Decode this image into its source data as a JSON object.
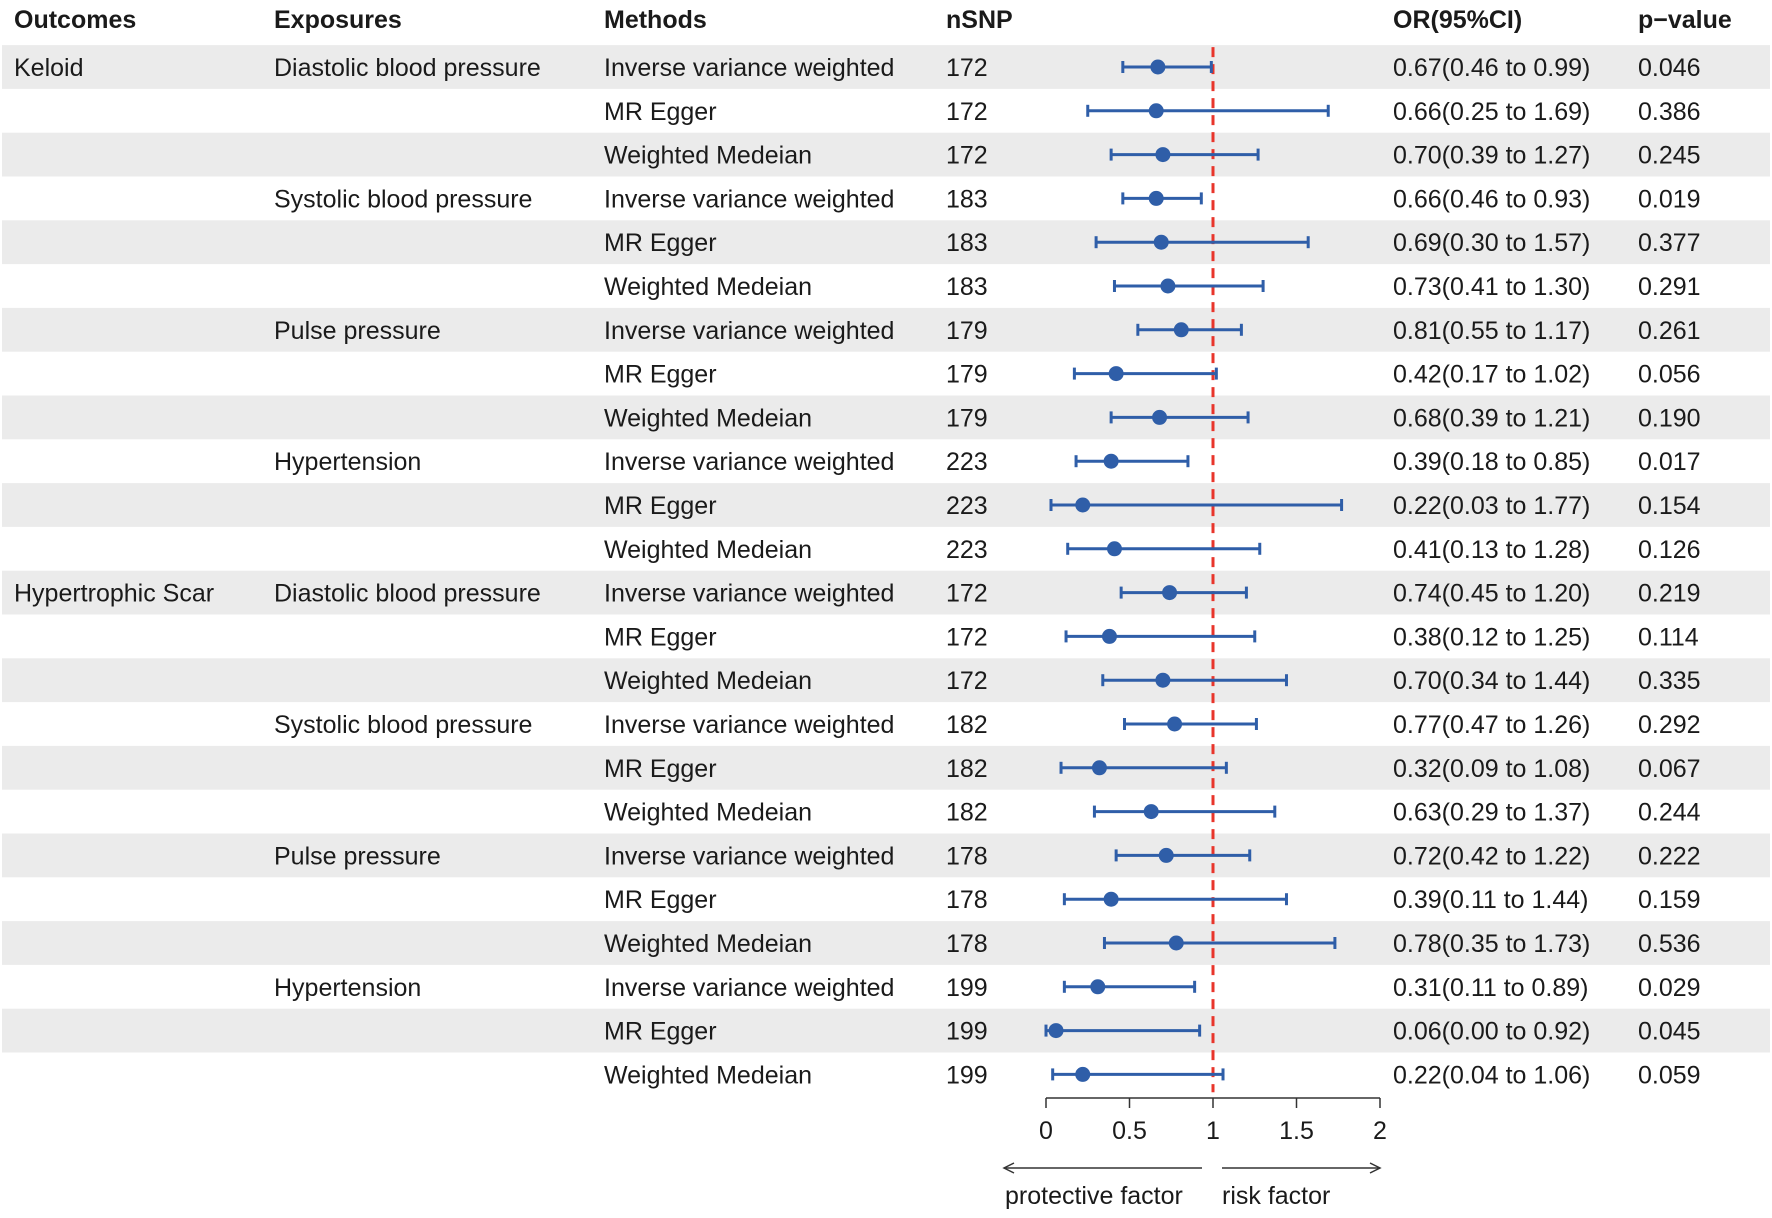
{
  "chart_data": {
    "type": "forest",
    "columns": {
      "outcomes": "Outcomes",
      "exposures": "Exposures",
      "methods": "Methods",
      "nsnp": "nSNP",
      "or": "OR(95%CI)",
      "p": "p−value"
    },
    "rows": [
      {
        "outcome": "Keloid",
        "exposure": "Diastolic blood pressure",
        "method": "Inverse variance weighted",
        "nsnp": "172",
        "or": 0.67,
        "lo": 0.46,
        "hi": 0.99,
        "or_text": "0.67(0.46 to 0.99)",
        "p": "0.046"
      },
      {
        "outcome": "",
        "exposure": "",
        "method": "MR Egger",
        "nsnp": "172",
        "or": 0.66,
        "lo": 0.25,
        "hi": 1.69,
        "or_text": "0.66(0.25 to 1.69)",
        "p": "0.386"
      },
      {
        "outcome": "",
        "exposure": "",
        "method": "Weighted Medeian",
        "nsnp": "172",
        "or": 0.7,
        "lo": 0.39,
        "hi": 1.27,
        "or_text": "0.70(0.39 to 1.27)",
        "p": "0.245"
      },
      {
        "outcome": "",
        "exposure": "Systolic blood pressure",
        "method": "Inverse variance weighted",
        "nsnp": "183",
        "or": 0.66,
        "lo": 0.46,
        "hi": 0.93,
        "or_text": "0.66(0.46 to 0.93)",
        "p": "0.019"
      },
      {
        "outcome": "",
        "exposure": "",
        "method": "MR Egger",
        "nsnp": "183",
        "or": 0.69,
        "lo": 0.3,
        "hi": 1.57,
        "or_text": "0.69(0.30 to 1.57)",
        "p": "0.377"
      },
      {
        "outcome": "",
        "exposure": "",
        "method": "Weighted Medeian",
        "nsnp": "183",
        "or": 0.73,
        "lo": 0.41,
        "hi": 1.3,
        "or_text": "0.73(0.41 to 1.30)",
        "p": "0.291"
      },
      {
        "outcome": "",
        "exposure": "Pulse pressure",
        "method": "Inverse variance weighted",
        "nsnp": "179",
        "or": 0.81,
        "lo": 0.55,
        "hi": 1.17,
        "or_text": "0.81(0.55 to 1.17)",
        "p": "0.261"
      },
      {
        "outcome": "",
        "exposure": "",
        "method": "MR Egger",
        "nsnp": "179",
        "or": 0.42,
        "lo": 0.17,
        "hi": 1.02,
        "or_text": "0.42(0.17 to 1.02)",
        "p": "0.056"
      },
      {
        "outcome": "",
        "exposure": "",
        "method": "Weighted Medeian",
        "nsnp": "179",
        "or": 0.68,
        "lo": 0.39,
        "hi": 1.21,
        "or_text": "0.68(0.39 to 1.21)",
        "p": "0.190"
      },
      {
        "outcome": "",
        "exposure": "Hypertension",
        "method": "Inverse variance weighted",
        "nsnp": "223",
        "or": 0.39,
        "lo": 0.18,
        "hi": 0.85,
        "or_text": "0.39(0.18 to 0.85)",
        "p": "0.017"
      },
      {
        "outcome": "",
        "exposure": "",
        "method": "MR Egger",
        "nsnp": "223",
        "or": 0.22,
        "lo": 0.03,
        "hi": 1.77,
        "or_text": "0.22(0.03 to 1.77)",
        "p": "0.154"
      },
      {
        "outcome": "",
        "exposure": "",
        "method": "Weighted Medeian",
        "nsnp": "223",
        "or": 0.41,
        "lo": 0.13,
        "hi": 1.28,
        "or_text": "0.41(0.13 to 1.28)",
        "p": "0.126"
      },
      {
        "outcome": "Hypertrophic Scar",
        "exposure": "Diastolic blood pressure",
        "method": "Inverse variance weighted",
        "nsnp": "172",
        "or": 0.74,
        "lo": 0.45,
        "hi": 1.2,
        "or_text": "0.74(0.45 to 1.20)",
        "p": "0.219"
      },
      {
        "outcome": "",
        "exposure": "",
        "method": "MR Egger",
        "nsnp": "172",
        "or": 0.38,
        "lo": 0.12,
        "hi": 1.25,
        "or_text": "0.38(0.12 to 1.25)",
        "p": "0.114"
      },
      {
        "outcome": "",
        "exposure": "",
        "method": "Weighted Medeian",
        "nsnp": "172",
        "or": 0.7,
        "lo": 0.34,
        "hi": 1.44,
        "or_text": "0.70(0.34 to 1.44)",
        "p": "0.335"
      },
      {
        "outcome": "",
        "exposure": "Systolic blood pressure",
        "method": "Inverse variance weighted",
        "nsnp": "182",
        "or": 0.77,
        "lo": 0.47,
        "hi": 1.26,
        "or_text": "0.77(0.47 to 1.26)",
        "p": "0.292"
      },
      {
        "outcome": "",
        "exposure": "",
        "method": "MR Egger",
        "nsnp": "182",
        "or": 0.32,
        "lo": 0.09,
        "hi": 1.08,
        "or_text": "0.32(0.09 to 1.08)",
        "p": "0.067"
      },
      {
        "outcome": "",
        "exposure": "",
        "method": "Weighted Medeian",
        "nsnp": "182",
        "or": 0.63,
        "lo": 0.29,
        "hi": 1.37,
        "or_text": "0.63(0.29 to 1.37)",
        "p": "0.244"
      },
      {
        "outcome": "",
        "exposure": "Pulse pressure",
        "method": "Inverse variance weighted",
        "nsnp": "178",
        "or": 0.72,
        "lo": 0.42,
        "hi": 1.22,
        "or_text": "0.72(0.42 to 1.22)",
        "p": "0.222"
      },
      {
        "outcome": "",
        "exposure": "",
        "method": "MR Egger",
        "nsnp": "178",
        "or": 0.39,
        "lo": 0.11,
        "hi": 1.44,
        "or_text": "0.39(0.11 to 1.44)",
        "p": "0.159"
      },
      {
        "outcome": "",
        "exposure": "",
        "method": "Weighted Medeian",
        "nsnp": "178",
        "or": 0.78,
        "lo": 0.35,
        "hi": 1.73,
        "or_text": "0.78(0.35 to 1.73)",
        "p": "0.536"
      },
      {
        "outcome": "",
        "exposure": "Hypertension",
        "method": "Inverse variance weighted",
        "nsnp": "199",
        "or": 0.31,
        "lo": 0.11,
        "hi": 0.89,
        "or_text": "0.31(0.11 to 0.89)",
        "p": "0.029"
      },
      {
        "outcome": "",
        "exposure": "",
        "method": "MR Egger",
        "nsnp": "199",
        "or": 0.06,
        "lo": 0.0,
        "hi": 0.92,
        "or_text": "0.06(0.00 to 0.92)",
        "p": "0.045"
      },
      {
        "outcome": "",
        "exposure": "",
        "method": "Weighted Medeian",
        "nsnp": "199",
        "or": 0.22,
        "lo": 0.04,
        "hi": 1.06,
        "or_text": "0.22(0.04 to 1.06)",
        "p": "0.059"
      }
    ],
    "xlim": [
      0,
      2
    ],
    "xticks": [
      0,
      0.5,
      1,
      1.5,
      2
    ],
    "xtick_labels": [
      "0",
      "0.5",
      "1",
      "1.5",
      "2"
    ],
    "reference_line": 1,
    "left_annotation": "protective factor",
    "right_annotation": "risk factor",
    "colors": {
      "point": "#2f5ea8",
      "reference": "#e8352b",
      "stripe": "#ebebeb",
      "text": "#1a1a1a",
      "axis": "#333333"
    }
  }
}
